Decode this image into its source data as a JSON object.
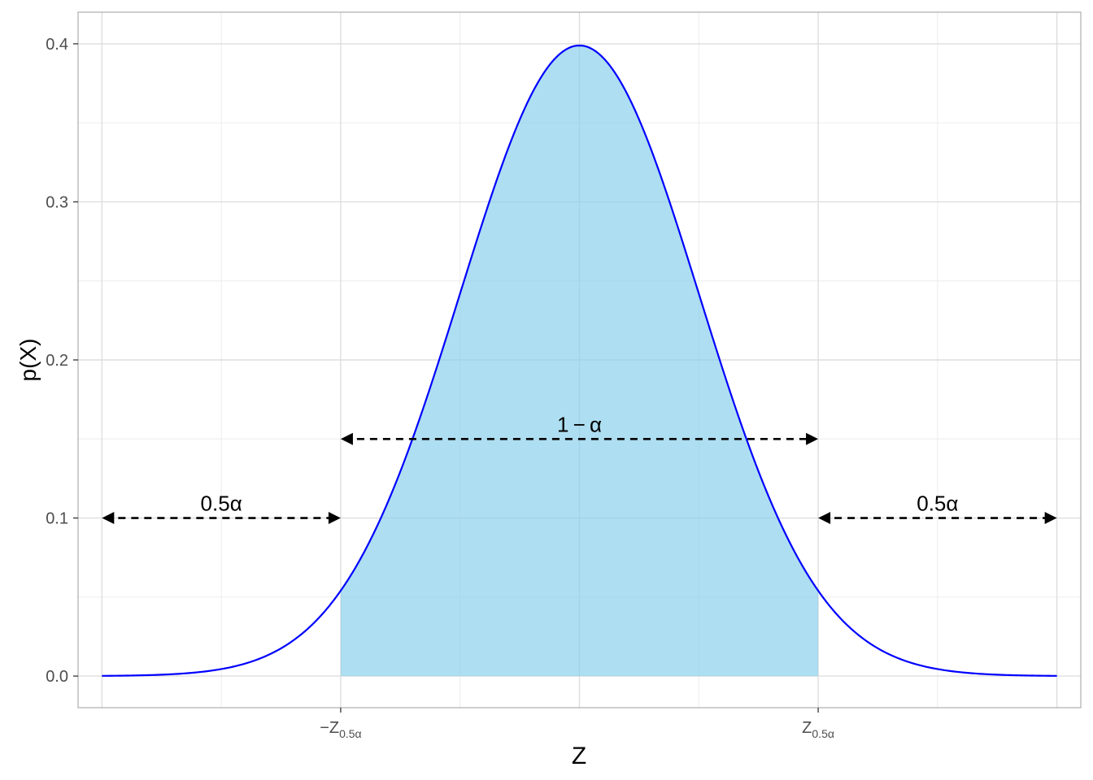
{
  "chart_data": {
    "type": "area",
    "title": "",
    "xlabel": "Z",
    "ylabel": "p(X)",
    "xlim": [
      -4.2,
      4.2
    ],
    "ylim": [
      -0.02,
      0.42
    ],
    "grid": true,
    "y_ticks": [
      0.0,
      0.1,
      0.2,
      0.3,
      0.4
    ],
    "y_tick_labels": [
      "0.0",
      "0.1",
      "0.2",
      "0.3",
      "0.4"
    ],
    "x_ticks": [
      {
        "value": -2,
        "main": "−Z",
        "sub": "0.5α"
      },
      {
        "value": 2,
        "main": "Z",
        "sub": "0.5α"
      }
    ],
    "curve": {
      "distribution": "standard normal density",
      "x_range": [
        -4,
        4
      ],
      "color": "#0000ff"
    },
    "shaded_region": {
      "x_from": -2,
      "x_to": 2,
      "color": "#87ceeb"
    },
    "annotations": [
      {
        "label": "0.5α",
        "x_from": -4,
        "x_to": -2,
        "y": 0.1
      },
      {
        "label": "1 − α",
        "x_from": -2,
        "x_to": 2,
        "y": 0.15
      },
      {
        "label": "0.5α",
        "x_from": 2,
        "x_to": 4,
        "y": 0.1
      }
    ],
    "colors": {
      "panel_border": "#b3b3b3",
      "grid_major": "#dedede",
      "grid_minor": "#efefef",
      "arrow": "#000000"
    }
  }
}
